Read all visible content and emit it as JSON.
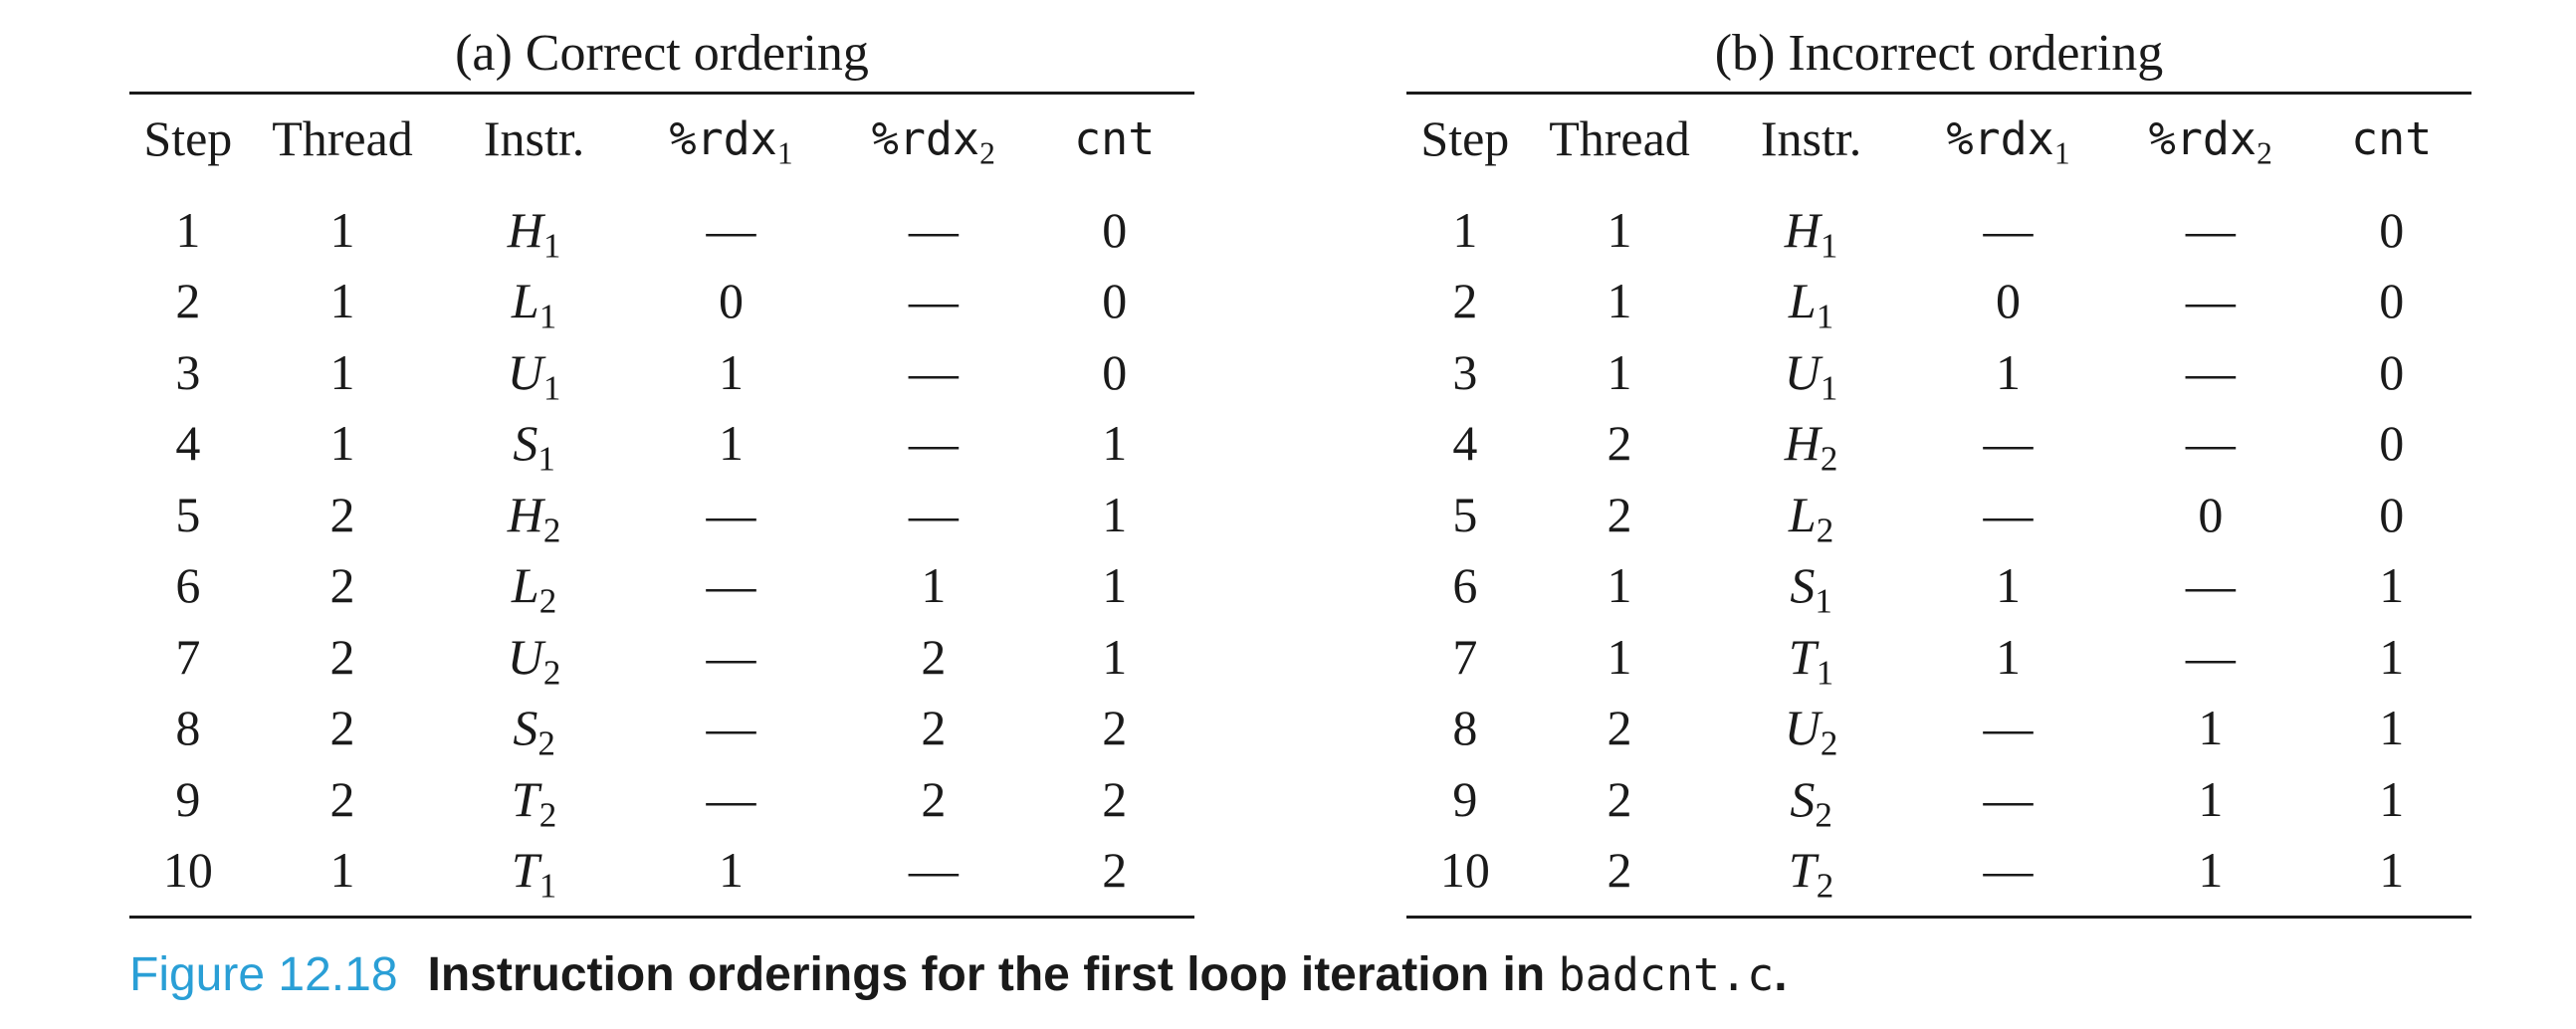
{
  "panels": [
    {
      "title": "(a) Correct ordering",
      "headers": {
        "step": "Step",
        "thread": "Thread",
        "instr": "Instr.",
        "rdx1_base": "%rdx",
        "rdx1_sub": "1",
        "rdx2_base": "%rdx",
        "rdx2_sub": "2",
        "cnt": "cnt"
      },
      "rows": [
        {
          "step": "1",
          "thread": "1",
          "instr": "H",
          "instr_sub": "1",
          "rdx1": "—",
          "rdx2": "—",
          "cnt": "0"
        },
        {
          "step": "2",
          "thread": "1",
          "instr": "L",
          "instr_sub": "1",
          "rdx1": "0",
          "rdx2": "—",
          "cnt": "0"
        },
        {
          "step": "3",
          "thread": "1",
          "instr": "U",
          "instr_sub": "1",
          "rdx1": "1",
          "rdx2": "—",
          "cnt": "0"
        },
        {
          "step": "4",
          "thread": "1",
          "instr": "S",
          "instr_sub": "1",
          "rdx1": "1",
          "rdx2": "—",
          "cnt": "1"
        },
        {
          "step": "5",
          "thread": "2",
          "instr": "H",
          "instr_sub": "2",
          "rdx1": "—",
          "rdx2": "—",
          "cnt": "1"
        },
        {
          "step": "6",
          "thread": "2",
          "instr": "L",
          "instr_sub": "2",
          "rdx1": "—",
          "rdx2": "1",
          "cnt": "1"
        },
        {
          "step": "7",
          "thread": "2",
          "instr": "U",
          "instr_sub": "2",
          "rdx1": "—",
          "rdx2": "2",
          "cnt": "1"
        },
        {
          "step": "8",
          "thread": "2",
          "instr": "S",
          "instr_sub": "2",
          "rdx1": "—",
          "rdx2": "2",
          "cnt": "2"
        },
        {
          "step": "9",
          "thread": "2",
          "instr": "T",
          "instr_sub": "2",
          "rdx1": "—",
          "rdx2": "2",
          "cnt": "2"
        },
        {
          "step": "10",
          "thread": "1",
          "instr": "T",
          "instr_sub": "1",
          "rdx1": "1",
          "rdx2": "—",
          "cnt": "2"
        }
      ]
    },
    {
      "title": "(b) Incorrect ordering",
      "headers": {
        "step": "Step",
        "thread": "Thread",
        "instr": "Instr.",
        "rdx1_base": "%rdx",
        "rdx1_sub": "1",
        "rdx2_base": "%rdx",
        "rdx2_sub": "2",
        "cnt": "cnt"
      },
      "rows": [
        {
          "step": "1",
          "thread": "1",
          "instr": "H",
          "instr_sub": "1",
          "rdx1": "—",
          "rdx2": "—",
          "cnt": "0"
        },
        {
          "step": "2",
          "thread": "1",
          "instr": "L",
          "instr_sub": "1",
          "rdx1": "0",
          "rdx2": "—",
          "cnt": "0"
        },
        {
          "step": "3",
          "thread": "1",
          "instr": "U",
          "instr_sub": "1",
          "rdx1": "1",
          "rdx2": "—",
          "cnt": "0"
        },
        {
          "step": "4",
          "thread": "2",
          "instr": "H",
          "instr_sub": "2",
          "rdx1": "—",
          "rdx2": "—",
          "cnt": "0"
        },
        {
          "step": "5",
          "thread": "2",
          "instr": "L",
          "instr_sub": "2",
          "rdx1": "—",
          "rdx2": "0",
          "cnt": "0"
        },
        {
          "step": "6",
          "thread": "1",
          "instr": "S",
          "instr_sub": "1",
          "rdx1": "1",
          "rdx2": "—",
          "cnt": "1"
        },
        {
          "step": "7",
          "thread": "1",
          "instr": "T",
          "instr_sub": "1",
          "rdx1": "1",
          "rdx2": "—",
          "cnt": "1"
        },
        {
          "step": "8",
          "thread": "2",
          "instr": "U",
          "instr_sub": "2",
          "rdx1": "—",
          "rdx2": "1",
          "cnt": "1"
        },
        {
          "step": "9",
          "thread": "2",
          "instr": "S",
          "instr_sub": "2",
          "rdx1": "—",
          "rdx2": "1",
          "cnt": "1"
        },
        {
          "step": "10",
          "thread": "2",
          "instr": "T",
          "instr_sub": "2",
          "rdx1": "—",
          "rdx2": "1",
          "cnt": "1"
        }
      ]
    }
  ],
  "caption": {
    "label": "Figure 12.18",
    "text": "Instruction orderings for the first loop iteration in ",
    "code": "badcnt.c",
    "end": "."
  },
  "colors": {
    "caption_label": "#2a9fd6",
    "text": "#1a1a1a",
    "background": "#ffffff"
  }
}
